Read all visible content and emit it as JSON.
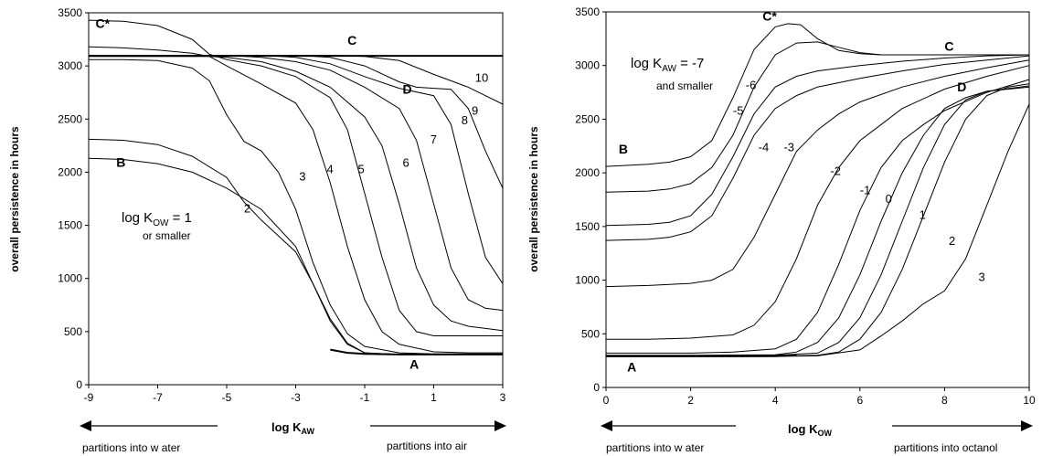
{
  "chart_data": [
    {
      "type": "line",
      "xlabel": "log K",
      "xlabel_sub": "AW",
      "ylabel": "overall persistence in hours",
      "xlim": [
        -9,
        3
      ],
      "ylim": [
        0,
        3500
      ],
      "xticks": [
        "-9",
        "-7",
        "-5",
        "-3",
        "-1",
        "1",
        "3"
      ],
      "yticks": [
        "0",
        "500",
        "1000",
        "1500",
        "2000",
        "2500",
        "3000",
        "3500"
      ],
      "direction_left": "partitions into w ater",
      "direction_right": "partitions into air",
      "note_main": "log K",
      "note_sub": "OW",
      "note_eq": " = 1",
      "note_second": "or smaller",
      "point_labels": [
        {
          "text": "A",
          "x": 0.3,
          "y": 150,
          "bold": true
        },
        {
          "text": "B",
          "x": -8.2,
          "y": 2050,
          "bold": true
        },
        {
          "text": "C",
          "x": -1.5,
          "y": 3200,
          "bold": true
        },
        {
          "text": "C*",
          "x": -8.8,
          "y": 3360,
          "bold": true
        },
        {
          "text": "D",
          "x": 0.1,
          "y": 2740,
          "bold": true
        }
      ],
      "curve_labels": [
        {
          "text": "2",
          "x": -4.5,
          "y": 1620
        },
        {
          "text": "3",
          "x": -2.9,
          "y": 1920
        },
        {
          "text": "4",
          "x": -2.1,
          "y": 1990
        },
        {
          "text": "5",
          "x": -1.2,
          "y": 1990
        },
        {
          "text": "6",
          "x": 0.1,
          "y": 2050
        },
        {
          "text": "7",
          "x": 0.9,
          "y": 2270
        },
        {
          "text": "8",
          "x": 1.8,
          "y": 2450
        },
        {
          "text": "9",
          "x": 2.1,
          "y": 2540
        },
        {
          "text": "10",
          "x": 2.2,
          "y": 2850
        }
      ],
      "series": [
        {
          "name": "1",
          "x": [
            -9,
            -8,
            -7,
            -6,
            -5,
            -4,
            -3,
            -2.5,
            -2,
            -1.5,
            -1,
            0,
            1,
            2,
            3
          ],
          "y": [
            2130,
            2120,
            2080,
            2000,
            1850,
            1650,
            1300,
            950,
            600,
            380,
            300,
            285,
            285,
            285,
            285
          ]
        },
        {
          "name": "2",
          "x": [
            -9,
            -8,
            -7,
            -6,
            -5,
            -4.5,
            -4,
            -3,
            -2.5,
            -2,
            -1.5,
            -1,
            0,
            1,
            2,
            3
          ],
          "y": [
            2310,
            2300,
            2260,
            2150,
            1950,
            1720,
            1550,
            1250,
            950,
            620,
            390,
            300,
            285,
            285,
            285,
            285
          ]
        },
        {
          "name": "3",
          "x": [
            -9,
            -8,
            -7,
            -6,
            -5.5,
            -5,
            -4.5,
            -4,
            -3.5,
            -3,
            -2.5,
            -2,
            -1.5,
            -1,
            0,
            1,
            2,
            3
          ],
          "y": [
            3060,
            3060,
            3050,
            2980,
            2860,
            2540,
            2290,
            2200,
            2000,
            1650,
            1150,
            750,
            480,
            360,
            300,
            290,
            290,
            290
          ]
        },
        {
          "name": "4",
          "x": [
            -9,
            -8,
            -7,
            -6,
            -5.5,
            -5,
            -4,
            -3,
            -2.5,
            -2,
            -1.5,
            -1,
            -0.5,
            0,
            1,
            2,
            3
          ],
          "y": [
            3180,
            3170,
            3150,
            3120,
            3090,
            3000,
            2830,
            2650,
            2400,
            1900,
            1300,
            800,
            500,
            380,
            310,
            300,
            300
          ]
        },
        {
          "name": "5",
          "x": [
            -9,
            -8,
            -7,
            -6,
            -5.5,
            -5,
            -4,
            -3,
            -2,
            -1.5,
            -1,
            -0.5,
            0,
            0.5,
            1,
            2,
            3
          ],
          "y": [
            3430,
            3420,
            3380,
            3250,
            3110,
            3060,
            3000,
            2900,
            2700,
            2400,
            1800,
            1200,
            700,
            500,
            460,
            460,
            460
          ]
        },
        {
          "name": "6",
          "x": [
            -9,
            -5.5,
            -5,
            -4,
            -3,
            -2,
            -1,
            -0.5,
            0,
            0.5,
            1,
            1.5,
            2,
            3
          ],
          "y": [
            3090,
            3090,
            3080,
            3040,
            2950,
            2800,
            2520,
            2250,
            1700,
            1100,
            750,
            600,
            550,
            510
          ]
        },
        {
          "name": "7",
          "x": [
            -9,
            -5,
            -4,
            -3,
            -2,
            -1,
            0,
            0.5,
            1,
            1.5,
            2,
            2.5,
            3
          ],
          "y": [
            3100,
            3100,
            3080,
            3040,
            2960,
            2800,
            2600,
            2300,
            1700,
            1100,
            800,
            720,
            700
          ]
        },
        {
          "name": "8",
          "x": [
            -9,
            -4,
            -3,
            -2,
            -1,
            0,
            1,
            1.5,
            2,
            2.5,
            3
          ],
          "y": [
            3100,
            3100,
            3080,
            3020,
            2900,
            2790,
            2720,
            2450,
            1800,
            1200,
            950
          ]
        },
        {
          "name": "9",
          "x": [
            -9,
            -3,
            -2,
            -1,
            0,
            0.5,
            1,
            1.5,
            2,
            2.5,
            3
          ],
          "y": [
            3100,
            3100,
            3080,
            3000,
            2850,
            2800,
            2790,
            2780,
            2600,
            2200,
            1850
          ]
        },
        {
          "name": "10",
          "x": [
            -9,
            -2,
            -1,
            0,
            1,
            1.5,
            2,
            2.5,
            3
          ],
          "y": [
            3100,
            3100,
            3090,
            3050,
            2920,
            2860,
            2800,
            2720,
            2640
          ]
        }
      ],
      "thick_series": [
        {
          "name": "C",
          "x": [
            -9,
            -1,
            0,
            1,
            2,
            3
          ],
          "y": [
            3095,
            3095,
            3095,
            3095,
            3095,
            3095
          ]
        },
        {
          "name": "A",
          "x": [
            -2,
            -1.5,
            -1,
            0,
            1,
            2,
            3
          ],
          "y": [
            330,
            300,
            290,
            285,
            285,
            285,
            285
          ]
        }
      ]
    },
    {
      "type": "line",
      "xlabel": "log K",
      "xlabel_sub": "OW",
      "ylabel": "overall persistence in hours",
      "xlim": [
        0,
        10
      ],
      "ylim": [
        0,
        3500
      ],
      "xticks": [
        "0",
        "2",
        "4",
        "6",
        "8",
        "10"
      ],
      "yticks": [
        "0",
        "500",
        "1000",
        "1500",
        "2000",
        "2500",
        "3000",
        "3500"
      ],
      "direction_left": "partitions into w ater",
      "direction_right": "partitions into octanol",
      "note_main": "log K",
      "note_sub": "AW",
      "note_eq": " = -7",
      "note_second": "and smaller",
      "point_labels": [
        {
          "text": "A",
          "x": 0.5,
          "y": 150,
          "bold": true
        },
        {
          "text": "B",
          "x": 0.3,
          "y": 2180,
          "bold": true
        },
        {
          "text": "C",
          "x": 8.0,
          "y": 3140,
          "bold": true
        },
        {
          "text": "C*",
          "x": 3.7,
          "y": 3420,
          "bold": true
        },
        {
          "text": "D",
          "x": 8.3,
          "y": 2760,
          "bold": true
        }
      ],
      "curve_labels": [
        {
          "text": "-6",
          "x": 3.3,
          "y": 2780
        },
        {
          "text": "-5",
          "x": 3.0,
          "y": 2540
        },
        {
          "text": "-4",
          "x": 3.6,
          "y": 2200
        },
        {
          "text": "-3",
          "x": 4.2,
          "y": 2200
        },
        {
          "text": "-2",
          "x": 5.3,
          "y": 1980
        },
        {
          "text": "-1",
          "x": 6.0,
          "y": 1800
        },
        {
          "text": "0",
          "x": 6.6,
          "y": 1720
        },
        {
          "text": "1",
          "x": 7.4,
          "y": 1570
        },
        {
          "text": "2",
          "x": 8.1,
          "y": 1330
        },
        {
          "text": "3",
          "x": 8.8,
          "y": 990
        }
      ],
      "series": [
        {
          "name": "-7",
          "x": [
            0,
            1,
            1.5,
            2,
            2.5,
            3,
            3.5,
            4,
            4.3,
            4.6,
            5,
            5.5,
            6,
            6.5,
            7,
            10
          ],
          "y": [
            2060,
            2080,
            2100,
            2150,
            2300,
            2700,
            3150,
            3360,
            3390,
            3380,
            3250,
            3140,
            3110,
            3100,
            3100,
            3100
          ]
        },
        {
          "name": "-6",
          "x": [
            0,
            1,
            1.5,
            2,
            2.5,
            3,
            3.5,
            4,
            4.5,
            5,
            5.5,
            6,
            6.5,
            7,
            10
          ],
          "y": [
            1820,
            1830,
            1850,
            1900,
            2050,
            2350,
            2800,
            3100,
            3210,
            3220,
            3170,
            3120,
            3100,
            3100,
            3100
          ]
        },
        {
          "name": "-5",
          "x": [
            0,
            1,
            1.5,
            2,
            2.5,
            3,
            3.5,
            4,
            4.5,
            5,
            6,
            7,
            8,
            9,
            10
          ],
          "y": [
            1510,
            1520,
            1540,
            1600,
            1800,
            2150,
            2550,
            2800,
            2900,
            2950,
            3000,
            3040,
            3070,
            3090,
            3100
          ]
        },
        {
          "name": "-4",
          "x": [
            0,
            1,
            1.5,
            2,
            2.5,
            3,
            3.5,
            4,
            4.5,
            5,
            6,
            7,
            8,
            9,
            10
          ],
          "y": [
            1370,
            1380,
            1400,
            1450,
            1600,
            1950,
            2350,
            2600,
            2720,
            2800,
            2880,
            2950,
            3010,
            3050,
            3090
          ]
        },
        {
          "name": "-3",
          "x": [
            0,
            1,
            2,
            2.5,
            3,
            3.5,
            4,
            4.5,
            5,
            5.5,
            6,
            7,
            8,
            9,
            10
          ],
          "y": [
            940,
            950,
            970,
            1000,
            1100,
            1400,
            1800,
            2200,
            2400,
            2550,
            2660,
            2800,
            2900,
            2980,
            3050
          ]
        },
        {
          "name": "-2",
          "x": [
            0,
            1,
            2,
            3,
            3.5,
            4,
            4.5,
            5,
            5.5,
            6,
            6.5,
            7,
            8,
            9,
            10
          ],
          "y": [
            450,
            450,
            460,
            490,
            580,
            800,
            1200,
            1700,
            2050,
            2300,
            2450,
            2600,
            2780,
            2900,
            3000
          ]
        },
        {
          "name": "-1",
          "x": [
            0,
            2,
            3,
            4,
            4.5,
            5,
            5.5,
            6,
            6.5,
            7,
            7.5,
            8,
            9,
            10
          ],
          "y": [
            320,
            320,
            330,
            360,
            450,
            700,
            1150,
            1650,
            2050,
            2300,
            2450,
            2580,
            2750,
            2870
          ]
        },
        {
          "name": "0",
          "x": [
            0,
            2,
            4,
            4.5,
            5,
            5.5,
            6,
            6.5,
            7,
            7.5,
            8,
            8.5,
            9,
            10
          ],
          "y": [
            300,
            300,
            305,
            330,
            420,
            650,
            1050,
            1550,
            2000,
            2350,
            2600,
            2700,
            2760,
            2810
          ]
        },
        {
          "name": "1",
          "x": [
            0,
            2,
            4,
            5,
            5.5,
            6,
            6.5,
            7,
            7.5,
            8,
            8.5,
            9,
            10
          ],
          "y": [
            295,
            295,
            300,
            320,
            420,
            650,
            1050,
            1550,
            2050,
            2450,
            2680,
            2760,
            2800
          ]
        },
        {
          "name": "2",
          "x": [
            0,
            2,
            4,
            5,
            5.5,
            6,
            6.5,
            7,
            7.5,
            8,
            8.5,
            9,
            9.5,
            10
          ],
          "y": [
            290,
            290,
            292,
            300,
            330,
            450,
            700,
            1100,
            1600,
            2100,
            2500,
            2720,
            2800,
            2830
          ]
        },
        {
          "name": "3",
          "x": [
            0,
            2,
            4,
            5,
            6,
            6.5,
            7,
            7.5,
            8,
            8.5,
            9,
            9.5,
            10
          ],
          "y": [
            290,
            290,
            290,
            295,
            350,
            480,
            620,
            780,
            900,
            1200,
            1700,
            2200,
            2640
          ]
        }
      ],
      "thick_series": [
        {
          "name": "A",
          "x": [
            0,
            2,
            3,
            4,
            4.5
          ],
          "y": [
            290,
            290,
            290,
            292,
            300
          ]
        }
      ]
    }
  ]
}
